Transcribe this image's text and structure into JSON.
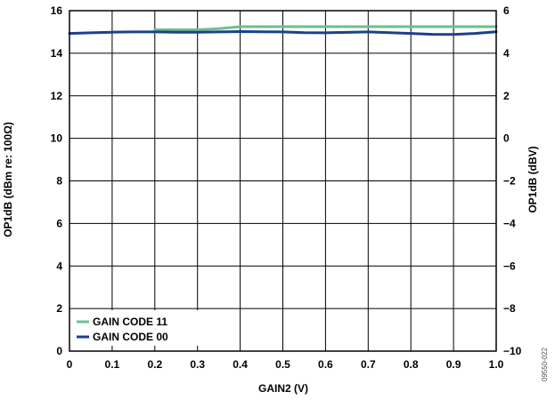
{
  "chart_data": {
    "type": "line",
    "xlabel": "GAIN2 (V)",
    "ylabel": "OP1dB (dBm re: 100Ω)",
    "y2label": "OP1dB (dBV)",
    "xlim": [
      0,
      1.0
    ],
    "ylim": [
      0,
      16
    ],
    "y2lim": [
      -10,
      6
    ],
    "x_ticks": [
      "0",
      "0.1",
      "0.2",
      "0.3",
      "0.4",
      "0.5",
      "0.6",
      "0.7",
      "0.8",
      "0.9",
      "1.0"
    ],
    "x_tick_values": [
      0,
      0.1,
      0.2,
      0.3,
      0.4,
      0.5,
      0.6,
      0.7,
      0.8,
      0.9,
      1.0
    ],
    "y_ticks": [
      "0",
      "2",
      "4",
      "6",
      "8",
      "10",
      "12",
      "14",
      "16"
    ],
    "y_tick_values": [
      0,
      2,
      4,
      6,
      8,
      10,
      12,
      14,
      16
    ],
    "y2_ticks": [
      "−10",
      "−8",
      "−6",
      "−4",
      "−2",
      "0",
      "2",
      "4",
      "6"
    ],
    "grid": true,
    "legend_position": "bottom-left",
    "series": [
      {
        "name": "GAIN CODE 11",
        "color": "#6cbf8f",
        "x": [
          0.2,
          0.25,
          0.3,
          0.35,
          0.4,
          0.45,
          0.5,
          0.55,
          0.6,
          0.65,
          0.7,
          0.75,
          0.8,
          0.85,
          0.9,
          0.95,
          1.0
        ],
        "values": [
          15.1,
          15.1,
          15.1,
          15.15,
          15.25,
          15.25,
          15.25,
          15.25,
          15.25,
          15.25,
          15.25,
          15.25,
          15.25,
          15.25,
          15.25,
          15.25,
          15.25
        ]
      },
      {
        "name": "GAIN CODE 00",
        "color": "#1c3f8f",
        "x": [
          0,
          0.05,
          0.1,
          0.15,
          0.2,
          0.25,
          0.3,
          0.35,
          0.4,
          0.45,
          0.5,
          0.55,
          0.6,
          0.65,
          0.7,
          0.75,
          0.8,
          0.85,
          0.9,
          0.95,
          1.0
        ],
        "values": [
          14.93,
          14.96,
          14.99,
          15.0,
          15.0,
          14.99,
          14.99,
          15.0,
          15.02,
          15.01,
          15.0,
          14.97,
          14.96,
          14.98,
          15.0,
          14.97,
          14.93,
          14.89,
          14.88,
          14.93,
          15.01
        ]
      }
    ]
  },
  "figure_id": "09550-022"
}
